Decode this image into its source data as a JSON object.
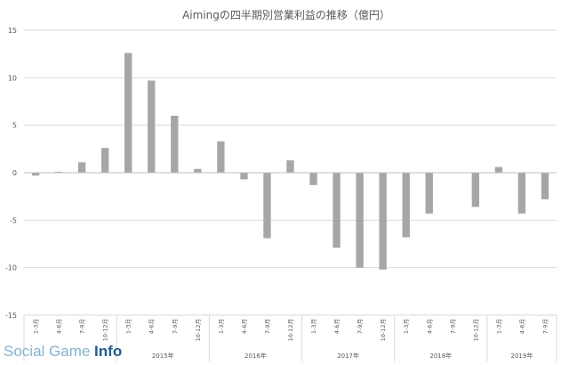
{
  "chart_data": {
    "type": "bar",
    "title": "Aimingの四半期別営業利益の推移（億円）",
    "ylim": [
      -15,
      15
    ],
    "yticks": [
      15,
      10,
      5,
      0,
      -5,
      -10,
      -15
    ],
    "grid": true,
    "bar_color": "#a6a6a6",
    "categories": [
      {
        "year": "",
        "quarter": "1-3月"
      },
      {
        "year": "",
        "quarter": "4-6月"
      },
      {
        "year": "",
        "quarter": "7-9月"
      },
      {
        "year": "",
        "quarter": "10-12月"
      },
      {
        "year": "2015年",
        "quarter": "1-3月"
      },
      {
        "year": "2015年",
        "quarter": "4-6月"
      },
      {
        "year": "2015年",
        "quarter": "7-9月"
      },
      {
        "year": "2015年",
        "quarter": "10-12月"
      },
      {
        "year": "2016年",
        "quarter": "1-3月"
      },
      {
        "year": "2016年",
        "quarter": "4-6月"
      },
      {
        "year": "2016年",
        "quarter": "7-9月"
      },
      {
        "year": "2016年",
        "quarter": "10-12月"
      },
      {
        "year": "2017年",
        "quarter": "1-3月"
      },
      {
        "year": "2017年",
        "quarter": "4-6月"
      },
      {
        "year": "2017年",
        "quarter": "7-9月"
      },
      {
        "year": "2017年",
        "quarter": "10-12月"
      },
      {
        "year": "2018年",
        "quarter": "1-3月"
      },
      {
        "year": "2018年",
        "quarter": "4-6月"
      },
      {
        "year": "2018年",
        "quarter": "7-9月"
      },
      {
        "year": "2018年",
        "quarter": "10-12月"
      },
      {
        "year": "2019年",
        "quarter": "1-3月"
      },
      {
        "year": "2019年",
        "quarter": "4-6月"
      },
      {
        "year": "2019年",
        "quarter": "7-9月"
      }
    ],
    "year_groups": [
      {
        "label": "",
        "span": 4
      },
      {
        "label": "2015年",
        "span": 4
      },
      {
        "label": "2016年",
        "span": 4
      },
      {
        "label": "2017年",
        "span": 4
      },
      {
        "label": "2018年",
        "span": 4
      },
      {
        "label": "2019年",
        "span": 3
      }
    ],
    "values": [
      -0.3,
      0.1,
      1.1,
      2.6,
      12.6,
      9.7,
      6.0,
      0.4,
      3.3,
      -0.7,
      -6.9,
      1.3,
      -1.3,
      -7.9,
      -10.0,
      -10.2,
      -6.8,
      -4.3,
      0.0,
      -3.6,
      0.6,
      -4.3,
      -2.8
    ]
  },
  "watermark": {
    "part1": "Social Game ",
    "part2": "Info"
  }
}
